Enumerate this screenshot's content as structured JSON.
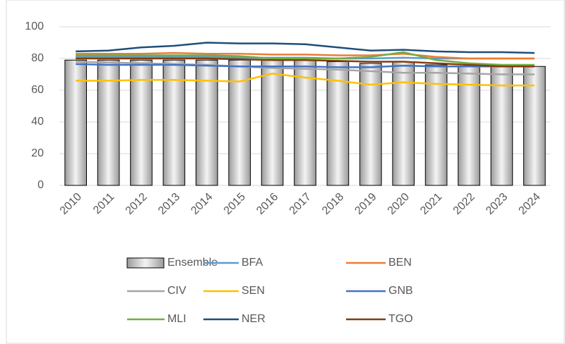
{
  "chart_data": {
    "type": "bar",
    "categories": [
      "2010",
      "2011",
      "2012",
      "2013",
      "2014",
      "2015",
      "2016",
      "2017",
      "2018",
      "2019",
      "2020",
      "2021",
      "2022",
      "2023",
      "2024"
    ],
    "series": [
      {
        "name": "Ensemble",
        "type": "bar",
        "color": "#d9d9d9",
        "values": [
          79,
          79,
          79,
          79,
          79,
          79,
          79,
          79,
          78,
          77,
          78,
          76,
          75,
          75,
          75
        ]
      },
      {
        "name": "BFA",
        "type": "line",
        "color": "#5b9bd5",
        "values": [
          81,
          81,
          81,
          81,
          81,
          80.5,
          80.5,
          80.5,
          80,
          80,
          80.5,
          80,
          80,
          80,
          80
        ]
      },
      {
        "name": "BEN",
        "type": "line",
        "color": "#ed7d31",
        "values": [
          83,
          83,
          83,
          83.5,
          83,
          83,
          82.5,
          82.5,
          82,
          82,
          83,
          81,
          80,
          80,
          80
        ]
      },
      {
        "name": "CIV",
        "type": "line",
        "color": "#a5a5a5",
        "values": [
          78,
          77.5,
          77,
          76.5,
          76,
          75,
          74,
          73.5,
          73,
          72,
          71,
          71,
          70.5,
          70,
          70
        ]
      },
      {
        "name": "SEN",
        "type": "line",
        "color": "#ffc000",
        "values": [
          66,
          66,
          66.5,
          66.5,
          66,
          65.5,
          70.5,
          68,
          66,
          63.5,
          65,
          64,
          63.5,
          63,
          63
        ]
      },
      {
        "name": "GNB",
        "type": "line",
        "color": "#4472c4",
        "values": [
          76.5,
          76,
          76,
          76,
          75.5,
          75,
          75,
          75,
          74.5,
          74.5,
          75.5,
          75,
          75,
          75,
          75
        ]
      },
      {
        "name": "MLI",
        "type": "line",
        "color": "#70ad47",
        "values": [
          82,
          82,
          82,
          82,
          82,
          81.5,
          80,
          80,
          80,
          81,
          84,
          79,
          77,
          76,
          76
        ]
      },
      {
        "name": "NER",
        "type": "line",
        "color": "#1f4e79",
        "values": [
          84.5,
          85,
          87,
          88,
          90,
          89.5,
          89.5,
          89,
          87,
          85,
          85.5,
          84.5,
          84,
          84,
          83.5
        ]
      },
      {
        "name": "TGO",
        "type": "line",
        "color": "#843c0c",
        "values": [
          80,
          80,
          80,
          80,
          80,
          79.5,
          79,
          79,
          78.5,
          78,
          78,
          77,
          76,
          75,
          75
        ]
      }
    ],
    "ylim": [
      0,
      100
    ],
    "yticks": [
      0,
      20,
      40,
      60,
      80,
      100
    ],
    "grid": true
  }
}
